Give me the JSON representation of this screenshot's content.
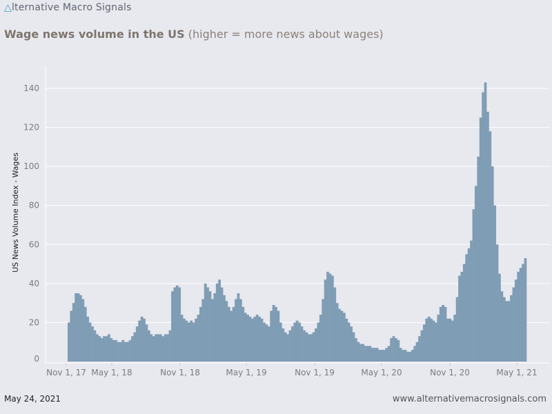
{
  "brand": {
    "logo_glyph": "A",
    "name_rest": "lternative Macro Signals"
  },
  "title": {
    "bold": "Wage news volume in the US",
    "rest": " (higher = more news about wages)"
  },
  "footer": {
    "date": "May 24, 2021",
    "site": "www.alternativemacrosignals.com"
  },
  "colors": {
    "bar": "#7f9db4",
    "background": "#e8e8ef",
    "grid": "#ffffff",
    "accent": "#3fa3c8"
  },
  "chart_data": {
    "type": "bar",
    "ylabel": "US News Volume Index - Wages",
    "xlabel": "",
    "ylim": [
      0,
      150
    ],
    "yticks": [
      0,
      20,
      40,
      60,
      80,
      100,
      120,
      140
    ],
    "xticks": [
      "Nov 1, 17",
      "May 1, 18",
      "Nov 1, 18",
      "May 1, 19",
      "Nov 1, 19",
      "May 1, 20",
      "Nov 1, 20",
      "May 1, 21"
    ],
    "grid": true,
    "x_start": "2017-11-01",
    "x_end": "2021-05-24",
    "x_step": "weekly",
    "series": [
      {
        "name": "",
        "values": [
          20,
          26,
          30,
          35,
          35,
          34,
          32,
          28,
          23,
          20,
          18,
          16,
          14,
          13,
          12,
          13,
          13,
          14,
          12,
          11,
          11,
          10,
          10,
          11,
          10,
          10,
          11,
          13,
          15,
          18,
          21,
          23,
          22,
          19,
          16,
          14,
          13,
          14,
          14,
          14,
          13,
          14,
          14,
          16,
          36,
          38,
          39,
          38,
          24,
          22,
          21,
          20,
          21,
          20,
          22,
          24,
          28,
          32,
          40,
          38,
          36,
          32,
          35,
          40,
          42,
          38,
          34,
          31,
          28,
          26,
          28,
          32,
          35,
          32,
          28,
          25,
          24,
          23,
          22,
          23,
          24,
          23,
          22,
          20,
          19,
          18,
          26,
          29,
          28,
          26,
          20,
          17,
          15,
          14,
          16,
          18,
          20,
          21,
          20,
          18,
          16,
          15,
          14,
          14,
          15,
          17,
          20,
          24,
          32,
          42,
          46,
          45,
          44,
          38,
          30,
          27,
          26,
          25,
          22,
          20,
          18,
          15,
          12,
          10,
          9,
          9,
          8,
          8,
          8,
          7,
          7,
          7,
          6,
          6,
          6,
          7,
          8,
          12,
          13,
          12,
          11,
          7,
          6,
          6,
          5,
          5,
          6,
          8,
          10,
          13,
          16,
          19,
          22,
          23,
          22,
          21,
          20,
          24,
          28,
          29,
          28,
          22,
          22,
          21,
          24,
          33,
          44,
          46,
          50,
          55,
          58,
          62,
          78,
          90,
          105,
          125,
          138,
          143,
          128,
          118,
          100,
          80,
          60,
          45,
          36,
          33,
          31,
          31,
          34,
          38,
          42,
          46,
          48,
          50,
          53
        ]
      }
    ]
  }
}
